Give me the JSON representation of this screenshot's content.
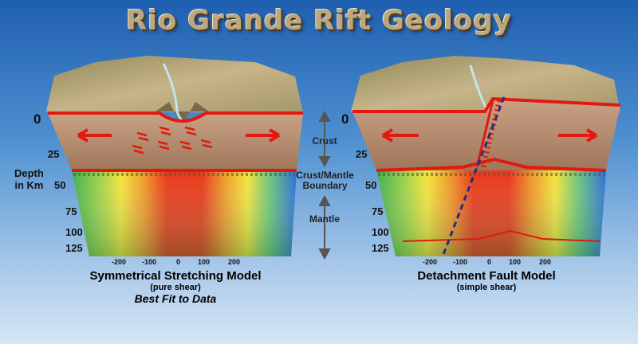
{
  "title": "Rio Grande Rift Geology",
  "depth_label": "Depth\nin Km",
  "depth_ticks": [
    "0",
    "25",
    "50",
    "75",
    "100",
    "125"
  ],
  "x_ticks": [
    "-200",
    "-100",
    "0",
    "100",
    "200"
  ],
  "middle_labels": {
    "crust": "Crust",
    "boundary": "Crust/Mantle\nBoundary",
    "mantle": "Mantle"
  },
  "left_model": {
    "title": "Symmetrical Stretching Model",
    "subtitle": "(pure shear)",
    "note": "Best Fit to Data"
  },
  "right_model": {
    "title": "Detachment Fault Model",
    "subtitle": "(simple shear)"
  },
  "colors": {
    "crust": "#b48a6c",
    "boundary_line": "#e01a10",
    "mantle_hot": "#e83a1a",
    "mantle_cool": "#2a6ed8",
    "fault_dash": "#2a2a7a"
  }
}
